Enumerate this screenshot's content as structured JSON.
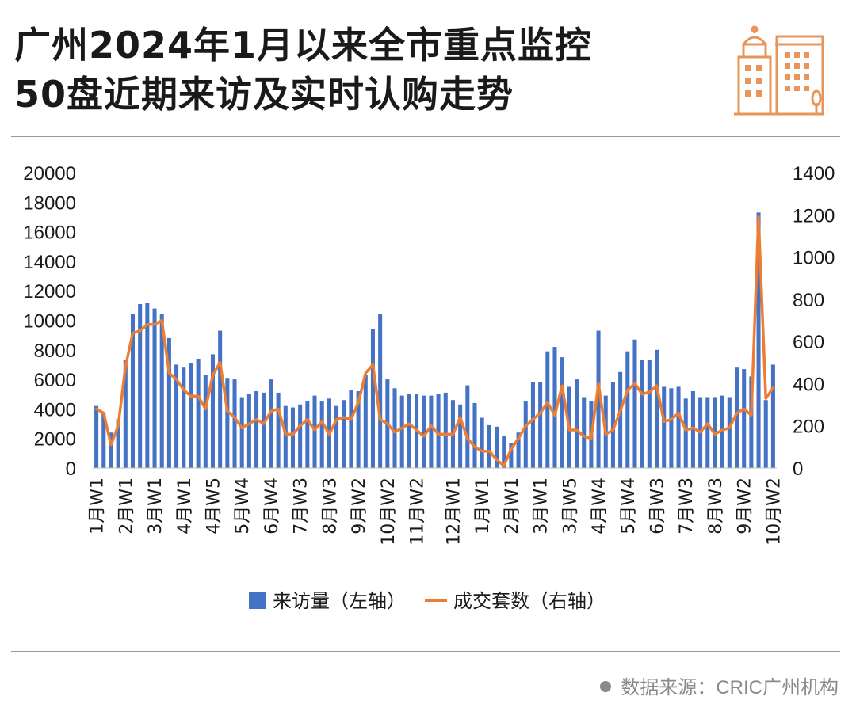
{
  "header": {
    "title_line1": "广州2024年1月以来全市重点监控",
    "title_line2": "50盘近期来访及实时认购走势"
  },
  "logo": {
    "icon": "buildings-icon",
    "color": "#E8955B"
  },
  "source": {
    "text": "数据来源：CRIC广州机构"
  },
  "chart_data": {
    "type": "bar+line",
    "title": "广州2024年1月以来全市重点监控50盘近期来访及实时认购走势",
    "colors": {
      "bar": "#4472C4",
      "line": "#ED7D31"
    },
    "x_tick_labels": [
      "1月W1",
      "2月W1",
      "3月W1",
      "4月W1",
      "4月W5",
      "5月W4",
      "6月W4",
      "7月W3",
      "8月W3",
      "9月W2",
      "10月W2",
      "11月W2",
      "12月W1",
      "1月W1",
      "2月W1",
      "3月W1",
      "3月W5",
      "4月W4",
      "5月W4",
      "6月W3",
      "7月W3",
      "8月W3",
      "9月W2",
      "10月W2"
    ],
    "left_axis": {
      "ylim": [
        0,
        20000
      ],
      "ticks": [
        0,
        2000,
        4000,
        6000,
        8000,
        10000,
        12000,
        14000,
        16000,
        18000,
        20000
      ]
    },
    "right_axis": {
      "ylim": [
        0,
        1400
      ],
      "ticks": [
        0,
        200,
        400,
        600,
        800,
        1000,
        1200,
        1400
      ]
    },
    "legend": {
      "position": "bottom"
    },
    "grid": false,
    "series": [
      {
        "name": "来访量（左轴）",
        "kind": "bar",
        "axis": "left",
        "values": [
          4200,
          3700,
          2400,
          3300,
          7300,
          10400,
          11100,
          11200,
          10800,
          10400,
          8800,
          7000,
          6800,
          7100,
          7400,
          6300,
          7700,
          9300,
          6100,
          6000,
          4800,
          5000,
          5200,
          5100,
          6000,
          5100,
          4200,
          4100,
          4300,
          4500,
          4900,
          4500,
          4700,
          4200,
          4600,
          5300,
          5200,
          6300,
          9400,
          10400,
          6000,
          5400,
          4900,
          5000,
          5000,
          4900,
          4900,
          5000,
          5100,
          4600,
          4300,
          5600,
          4400,
          3400,
          2900,
          2800,
          2200,
          1700,
          2400,
          4500,
          5800,
          5800,
          7900,
          8200,
          7500,
          5500,
          6000,
          4800,
          4500,
          9300,
          4900,
          5800,
          6500,
          7900,
          8700,
          7300,
          7300,
          8000,
          5500,
          5400,
          5500,
          4700,
          5200,
          4800,
          4800,
          4800,
          4900,
          4800,
          6800,
          6700,
          6200,
          17300,
          4600,
          7000
        ]
      },
      {
        "name": "成交套数（右轴）",
        "kind": "line",
        "axis": "right",
        "values": [
          280,
          260,
          110,
          200,
          480,
          640,
          650,
          680,
          680,
          700,
          450,
          420,
          370,
          340,
          340,
          280,
          440,
          500,
          270,
          240,
          190,
          210,
          230,
          210,
          270,
          280,
          160,
          160,
          200,
          230,
          180,
          220,
          160,
          230,
          240,
          230,
          310,
          450,
          490,
          230,
          210,
          170,
          190,
          210,
          180,
          150,
          200,
          160,
          160,
          160,
          240,
          140,
          100,
          80,
          80,
          40,
          10,
          90,
          140,
          200,
          230,
          260,
          310,
          250,
          390,
          180,
          180,
          150,
          140,
          400,
          160,
          180,
          270,
          370,
          400,
          350,
          360,
          390,
          220,
          230,
          260,
          180,
          190,
          170,
          210,
          160,
          180,
          190,
          260,
          280,
          250,
          1190,
          330,
          380
        ]
      }
    ]
  }
}
